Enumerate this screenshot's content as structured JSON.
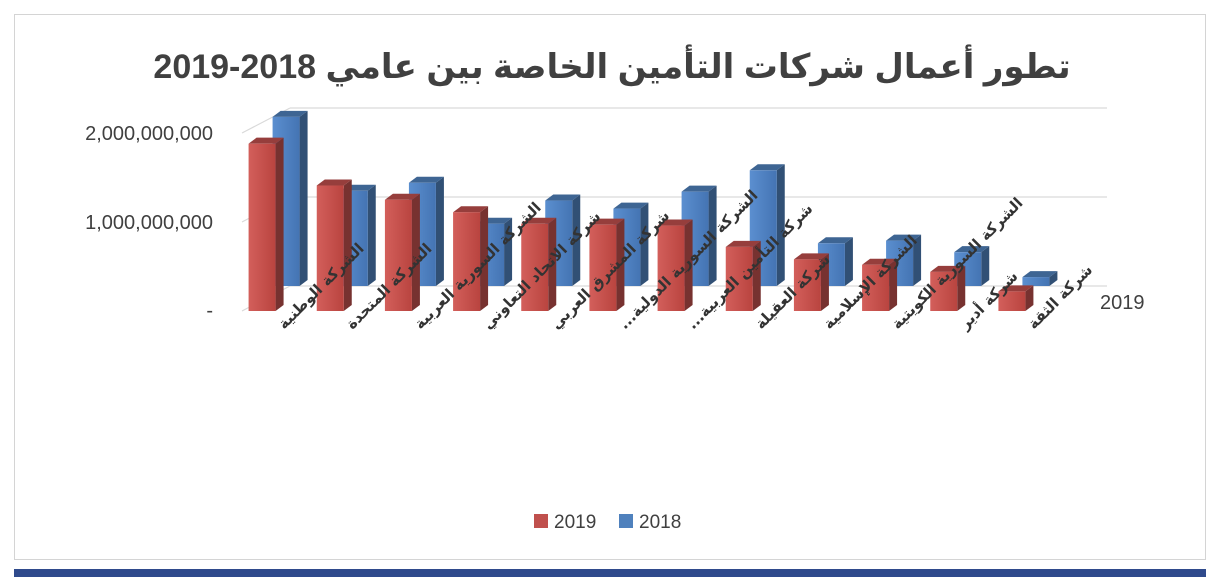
{
  "chart_data": {
    "type": "bar",
    "title": "تطور  أعمال شركات التأمين الخاصة بين عامي 2018-2019",
    "xlabel": "",
    "ylabel": "",
    "ylim": [
      0,
      2000000000
    ],
    "y_ticks": [
      {
        "value": 0,
        "label": "-"
      },
      {
        "value": 1000000000,
        "label": "1,000,000,000"
      },
      {
        "value": 2000000000,
        "label": "2,000,000,000"
      }
    ],
    "depth_axis_label": "2019",
    "grid": true,
    "legend_position": "bottom",
    "categories": [
      "الشركة الوطنية",
      "الشركة المتحدة",
      "الشركة السورية العربية",
      "شركة الاتحاد التعاوني",
      "شركة المشرق العربي",
      "الشركة السورية الدولية...",
      "شركة التأمين العربية...",
      "شركة العقيلة",
      "الشركة الإسلامية",
      "الشركة السورية الكويتية",
      "شركة أدير",
      "شركة الثقة"
    ],
    "series": [
      {
        "name": "2019",
        "color": "#c0504d",
        "values": [
          1880000000,
          1410000000,
          1250000000,
          1110000000,
          980000000,
          970000000,
          960000000,
          720000000,
          580000000,
          520000000,
          440000000,
          220000000
        ]
      },
      {
        "name": "2018",
        "color": "#4f81bd",
        "values": [
          1900000000,
          1070000000,
          1160000000,
          700000000,
          960000000,
          870000000,
          1060000000,
          1300000000,
          480000000,
          510000000,
          380000000,
          100000000
        ]
      }
    ]
  }
}
